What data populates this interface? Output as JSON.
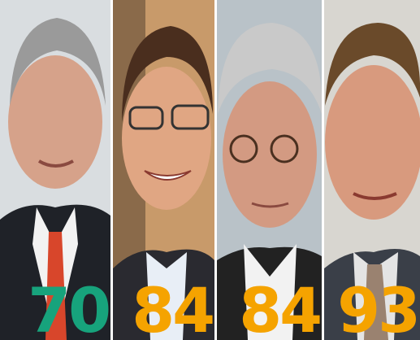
{
  "panels": [
    {
      "score": 70,
      "color": "#17a37c"
    },
    {
      "score": 84,
      "color": "#f5a300"
    },
    {
      "score": 84,
      "color": "#f5a300"
    },
    {
      "score": 93,
      "color": "#f5a300"
    }
  ]
}
